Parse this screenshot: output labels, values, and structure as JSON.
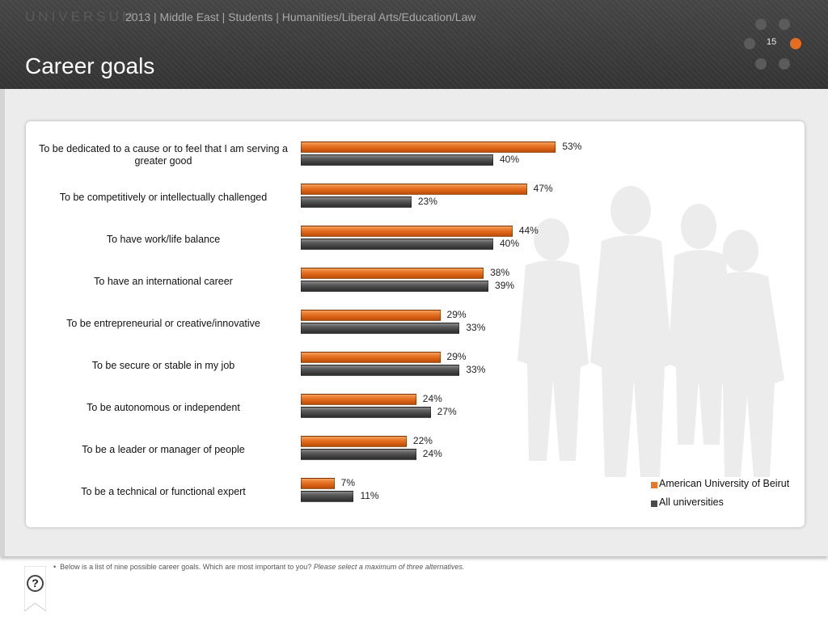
{
  "header": {
    "brand": "UNIVERSUM",
    "breadcrumb": "2013 | Middle East | Students | Humanities/Liberal Arts/Education/Law",
    "title": "Career goals",
    "page_number": "15"
  },
  "colors": {
    "accent": "#e56d1f",
    "series_0": "#e8772a",
    "series_1": "#4a4a4a",
    "header_bg": "#3b3b3b"
  },
  "chart_data": {
    "type": "bar",
    "orientation": "horizontal",
    "categories": [
      "To be dedicated to a cause or to feel that I am serving a greater good",
      "To be competitively or intellectually challenged",
      "To have work/life balance",
      "To have an international career",
      "To be entrepreneurial or creative/innovative",
      "To be secure or stable in my job",
      "To be autonomous or independent",
      "To be a leader or manager of people",
      "To be a technical or functional expert"
    ],
    "series": [
      {
        "name": "American University of Beirut",
        "values": [
          53,
          47,
          44,
          38,
          29,
          29,
          24,
          22,
          7
        ]
      },
      {
        "name": "All universities",
        "values": [
          40,
          23,
          40,
          39,
          33,
          33,
          27,
          24,
          11
        ]
      }
    ],
    "value_labels": [
      [
        "53%",
        "47%",
        "44%",
        "38%",
        "29%",
        "29%",
        "24%",
        "22%",
        "7%"
      ],
      [
        "40%",
        "23%",
        "40%",
        "39%",
        "33%",
        "33%",
        "27%",
        "24%",
        "11%"
      ]
    ],
    "unit": "%",
    "xlim": [
      0,
      100
    ],
    "grid": false,
    "legend_position": "bottom-right"
  },
  "footnote": {
    "bullet": "•",
    "text": "Below is a list of nine possible career goals. Which are most important to you?",
    "emphasis": "Please select a maximum of three alternatives."
  },
  "help": {
    "icon": "question-icon",
    "label": "?"
  }
}
